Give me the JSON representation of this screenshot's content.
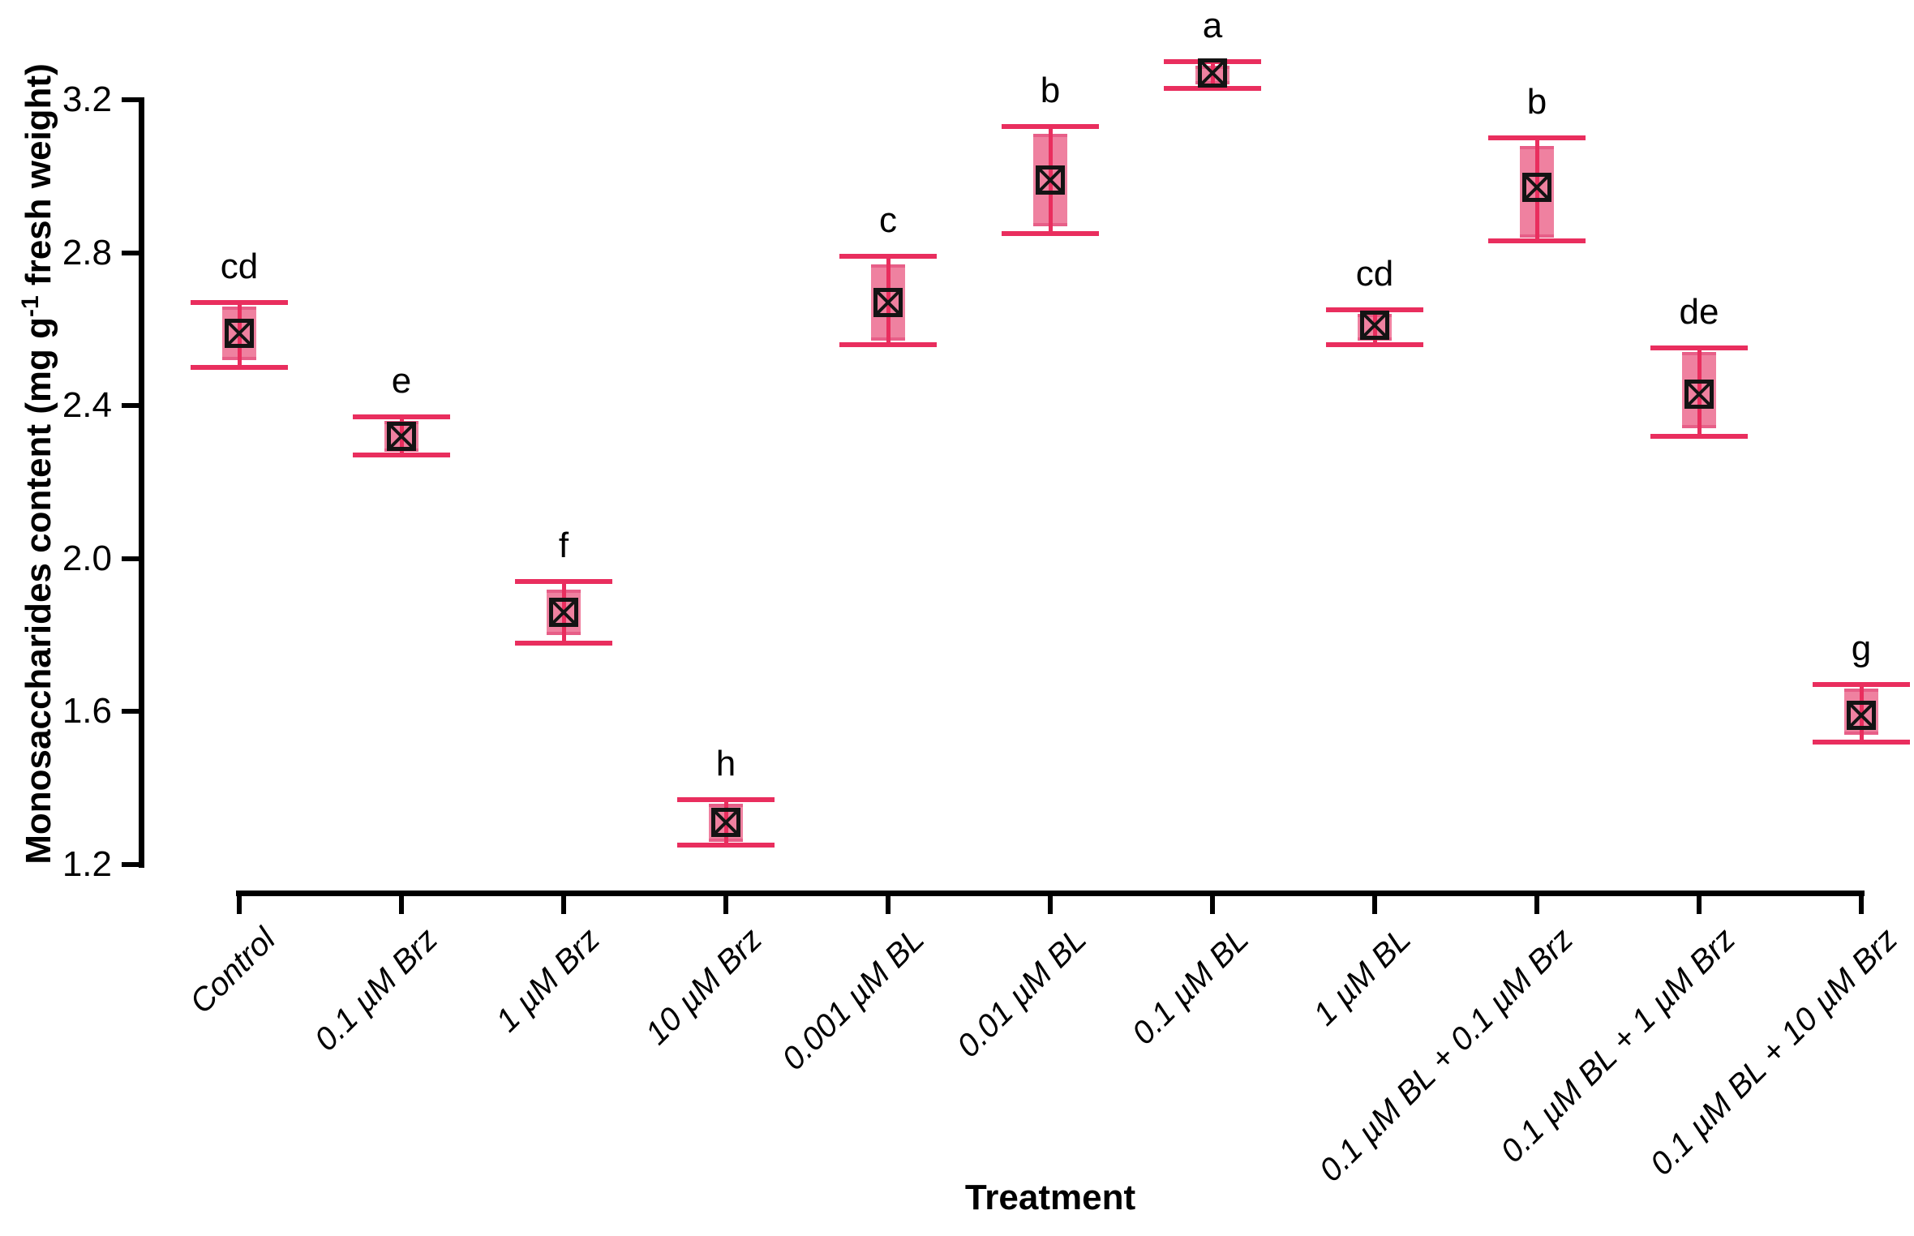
{
  "colors": {
    "whisker_line": "#e92e5e",
    "box_fill": "#ef81a0",
    "box_edge": "#e75f88",
    "marker_stroke": "#141414",
    "axis": "#000000",
    "text": "#000000",
    "background": "#ffffff"
  },
  "y_axis_label": {
    "prefix": "Monosaccharides content (mg g",
    "sup": "-1",
    "suffix": " fresh weight)"
  },
  "chart_data": {
    "type": "box-error-bar",
    "title": "",
    "xlabel": "Treatment",
    "ylabel": "Monosaccharides content (mg g-1 fresh weight)",
    "ylim": [
      1.2,
      3.2
    ],
    "yticks": [
      "3.2",
      "2.8",
      "2.4",
      "2.0",
      "1.6",
      "1.2"
    ],
    "grid": "off",
    "legend": "none",
    "marker_glyph": "boxed-x-square",
    "categories": [
      "Control",
      "0.1 µM Brz",
      "1 µM Brz",
      "10 µM Brz",
      "0.001 µM BL",
      "0.01 µM BL",
      "0.1 µM BL",
      "1 µM BL",
      "0.1 µM BL + 0.1 µM Brz",
      "0.1 µM BL + 1 µM Brz",
      "0.1 µM BL + 10 µM Brz"
    ],
    "points": [
      {
        "category": "Control",
        "letter": "cd",
        "mean": 2.59,
        "box_low": 2.52,
        "box_high": 2.66,
        "whisker_low": 2.5,
        "whisker_high": 2.67
      },
      {
        "category": "0.1 µM Brz",
        "letter": "e",
        "mean": 2.32,
        "box_low": 2.28,
        "box_high": 2.36,
        "whisker_low": 2.27,
        "whisker_high": 2.37
      },
      {
        "category": "1 µM Brz",
        "letter": "f",
        "mean": 1.86,
        "box_low": 1.8,
        "box_high": 1.92,
        "whisker_low": 1.78,
        "whisker_high": 1.94
      },
      {
        "category": "10 µM Brz",
        "letter": "h",
        "mean": 1.31,
        "box_low": 1.26,
        "box_high": 1.36,
        "whisker_low": 1.25,
        "whisker_high": 1.37
      },
      {
        "category": "0.001 µM BL",
        "letter": "c",
        "mean": 2.67,
        "box_low": 2.57,
        "box_high": 2.77,
        "whisker_low": 2.56,
        "whisker_high": 2.79
      },
      {
        "category": "0.01 µM BL",
        "letter": "b",
        "mean": 2.99,
        "box_low": 2.87,
        "box_high": 3.11,
        "whisker_low": 2.85,
        "whisker_high": 3.13
      },
      {
        "category": "0.1 µM BL",
        "letter": "a",
        "mean": 3.27,
        "box_low": 3.24,
        "box_high": 3.29,
        "whisker_low": 3.23,
        "whisker_high": 3.3
      },
      {
        "category": "1 µM BL",
        "letter": "cd",
        "mean": 2.61,
        "box_low": 2.57,
        "box_high": 2.64,
        "whisker_low": 2.56,
        "whisker_high": 2.65
      },
      {
        "category": "0.1 µM BL + 0.1 µM Brz",
        "letter": "b",
        "mean": 2.97,
        "box_low": 2.84,
        "box_high": 3.08,
        "whisker_low": 2.83,
        "whisker_high": 3.1
      },
      {
        "category": "0.1 µM BL + 1 µM Brz",
        "letter": "de",
        "mean": 2.43,
        "box_low": 2.34,
        "box_high": 2.54,
        "whisker_low": 2.32,
        "whisker_high": 2.55
      },
      {
        "category": "0.1 µM BL + 10 µM Brz",
        "letter": "g",
        "mean": 1.59,
        "box_low": 1.54,
        "box_high": 1.66,
        "whisker_low": 1.52,
        "whisker_high": 1.67
      }
    ]
  }
}
